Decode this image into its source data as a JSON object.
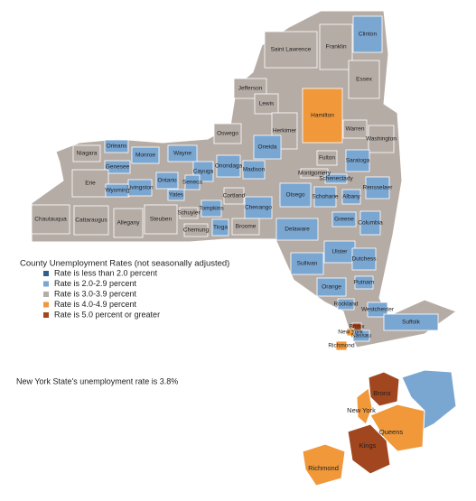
{
  "legend": {
    "title": "County Unemployment Rates (not seasonally adjusted)",
    "items": [
      {
        "label": "Rate is less than 2.0 percent",
        "color": "#2f5f8e"
      },
      {
        "label": "Rate is 2.0-2.9 percent",
        "color": "#7aa6d2"
      },
      {
        "label": "Rate is 3.0-3.9 percent",
        "color": "#b6aca6"
      },
      {
        "label": "Rate is 4.0-4.9 percent",
        "color": "#f0983a"
      },
      {
        "label": "Rate is 5.0 percent or greater",
        "color": "#a1461f"
      }
    ]
  },
  "note": "New York State's unemployment rate is 3.8%",
  "counties": [
    {
      "name": "Saint Lawrence",
      "color": "#b6aca6"
    },
    {
      "name": "Franklin",
      "color": "#b6aca6"
    },
    {
      "name": "Clinton",
      "color": "#7aa6d2"
    },
    {
      "name": "Essex",
      "color": "#b6aca6"
    },
    {
      "name": "Jefferson",
      "color": "#b6aca6"
    },
    {
      "name": "Lewis",
      "color": "#b6aca6"
    },
    {
      "name": "Hamilton",
      "color": "#f0983a"
    },
    {
      "name": "Warren",
      "color": "#b6aca6"
    },
    {
      "name": "Washington",
      "color": "#b6aca6"
    },
    {
      "name": "Oswego",
      "color": "#b6aca6"
    },
    {
      "name": "Herkimer",
      "color": "#b6aca6"
    },
    {
      "name": "Oneida",
      "color": "#7aa6d2"
    },
    {
      "name": "Niagara",
      "color": "#b6aca6"
    },
    {
      "name": "Orleans",
      "color": "#7aa6d2"
    },
    {
      "name": "Monroe",
      "color": "#7aa6d2"
    },
    {
      "name": "Wayne",
      "color": "#7aa6d2"
    },
    {
      "name": "Genesee",
      "color": "#7aa6d2"
    },
    {
      "name": "Onondaga",
      "color": "#7aa6d2"
    },
    {
      "name": "Madison",
      "color": "#7aa6d2"
    },
    {
      "name": "Fulton",
      "color": "#b6aca6"
    },
    {
      "name": "Saratoga",
      "color": "#7aa6d2"
    },
    {
      "name": "Montgomery",
      "color": "#b6aca6"
    },
    {
      "name": "Schenectady",
      "color": "#7aa6d2"
    },
    {
      "name": "Rensselaer",
      "color": "#7aa6d2"
    },
    {
      "name": "Cayuga",
      "color": "#7aa6d2"
    },
    {
      "name": "Ontario",
      "color": "#7aa6d2"
    },
    {
      "name": "Seneca",
      "color": "#7aa6d2"
    },
    {
      "name": "Erie",
      "color": "#b6aca6"
    },
    {
      "name": "Wyoming",
      "color": "#7aa6d2"
    },
    {
      "name": "Livingston",
      "color": "#7aa6d2"
    },
    {
      "name": "Yates",
      "color": "#7aa6d2"
    },
    {
      "name": "Cortland",
      "color": "#b6aca6"
    },
    {
      "name": "Otsego",
      "color": "#7aa6d2"
    },
    {
      "name": "Schoharie",
      "color": "#7aa6d2"
    },
    {
      "name": "Albany",
      "color": "#7aa6d2"
    },
    {
      "name": "Chenango",
      "color": "#7aa6d2"
    },
    {
      "name": "Schuyler",
      "color": "#b6aca6"
    },
    {
      "name": "Tompkins",
      "color": "#7aa6d2"
    },
    {
      "name": "Greene",
      "color": "#7aa6d2"
    },
    {
      "name": "Columbia",
      "color": "#7aa6d2"
    },
    {
      "name": "Chautauqua",
      "color": "#b6aca6"
    },
    {
      "name": "Cattaraugus",
      "color": "#b6aca6"
    },
    {
      "name": "Allegany",
      "color": "#b6aca6"
    },
    {
      "name": "Steuben",
      "color": "#b6aca6"
    },
    {
      "name": "Tioga",
      "color": "#7aa6d2"
    },
    {
      "name": "Chemung",
      "color": "#b6aca6"
    },
    {
      "name": "Broome",
      "color": "#b6aca6"
    },
    {
      "name": "Delaware",
      "color": "#7aa6d2"
    },
    {
      "name": "Ulster",
      "color": "#7aa6d2"
    },
    {
      "name": "Dutchess",
      "color": "#7aa6d2"
    },
    {
      "name": "Sullivan",
      "color": "#7aa6d2"
    },
    {
      "name": "Orange",
      "color": "#7aa6d2"
    },
    {
      "name": "Putnam",
      "color": "#7aa6d2"
    },
    {
      "name": "Rockland",
      "color": "#7aa6d2"
    },
    {
      "name": "Westchester",
      "color": "#7aa6d2"
    },
    {
      "name": "Suffolk",
      "color": "#7aa6d2"
    },
    {
      "name": "Nassau",
      "color": "#7aa6d2"
    },
    {
      "name": "Bronx",
      "color": "#a1461f"
    },
    {
      "name": "New York",
      "color": "#f0983a"
    },
    {
      "name": "Richmond",
      "color": "#f0983a"
    }
  ],
  "inset": [
    {
      "name": "Bronx",
      "color": "#a1461f"
    },
    {
      "name": "New York",
      "color": "#f0983a"
    },
    {
      "name": "Queens",
      "color": "#f0983a"
    },
    {
      "name": "Kings",
      "color": "#a1461f"
    },
    {
      "name": "Richmond",
      "color": "#f0983a"
    }
  ]
}
